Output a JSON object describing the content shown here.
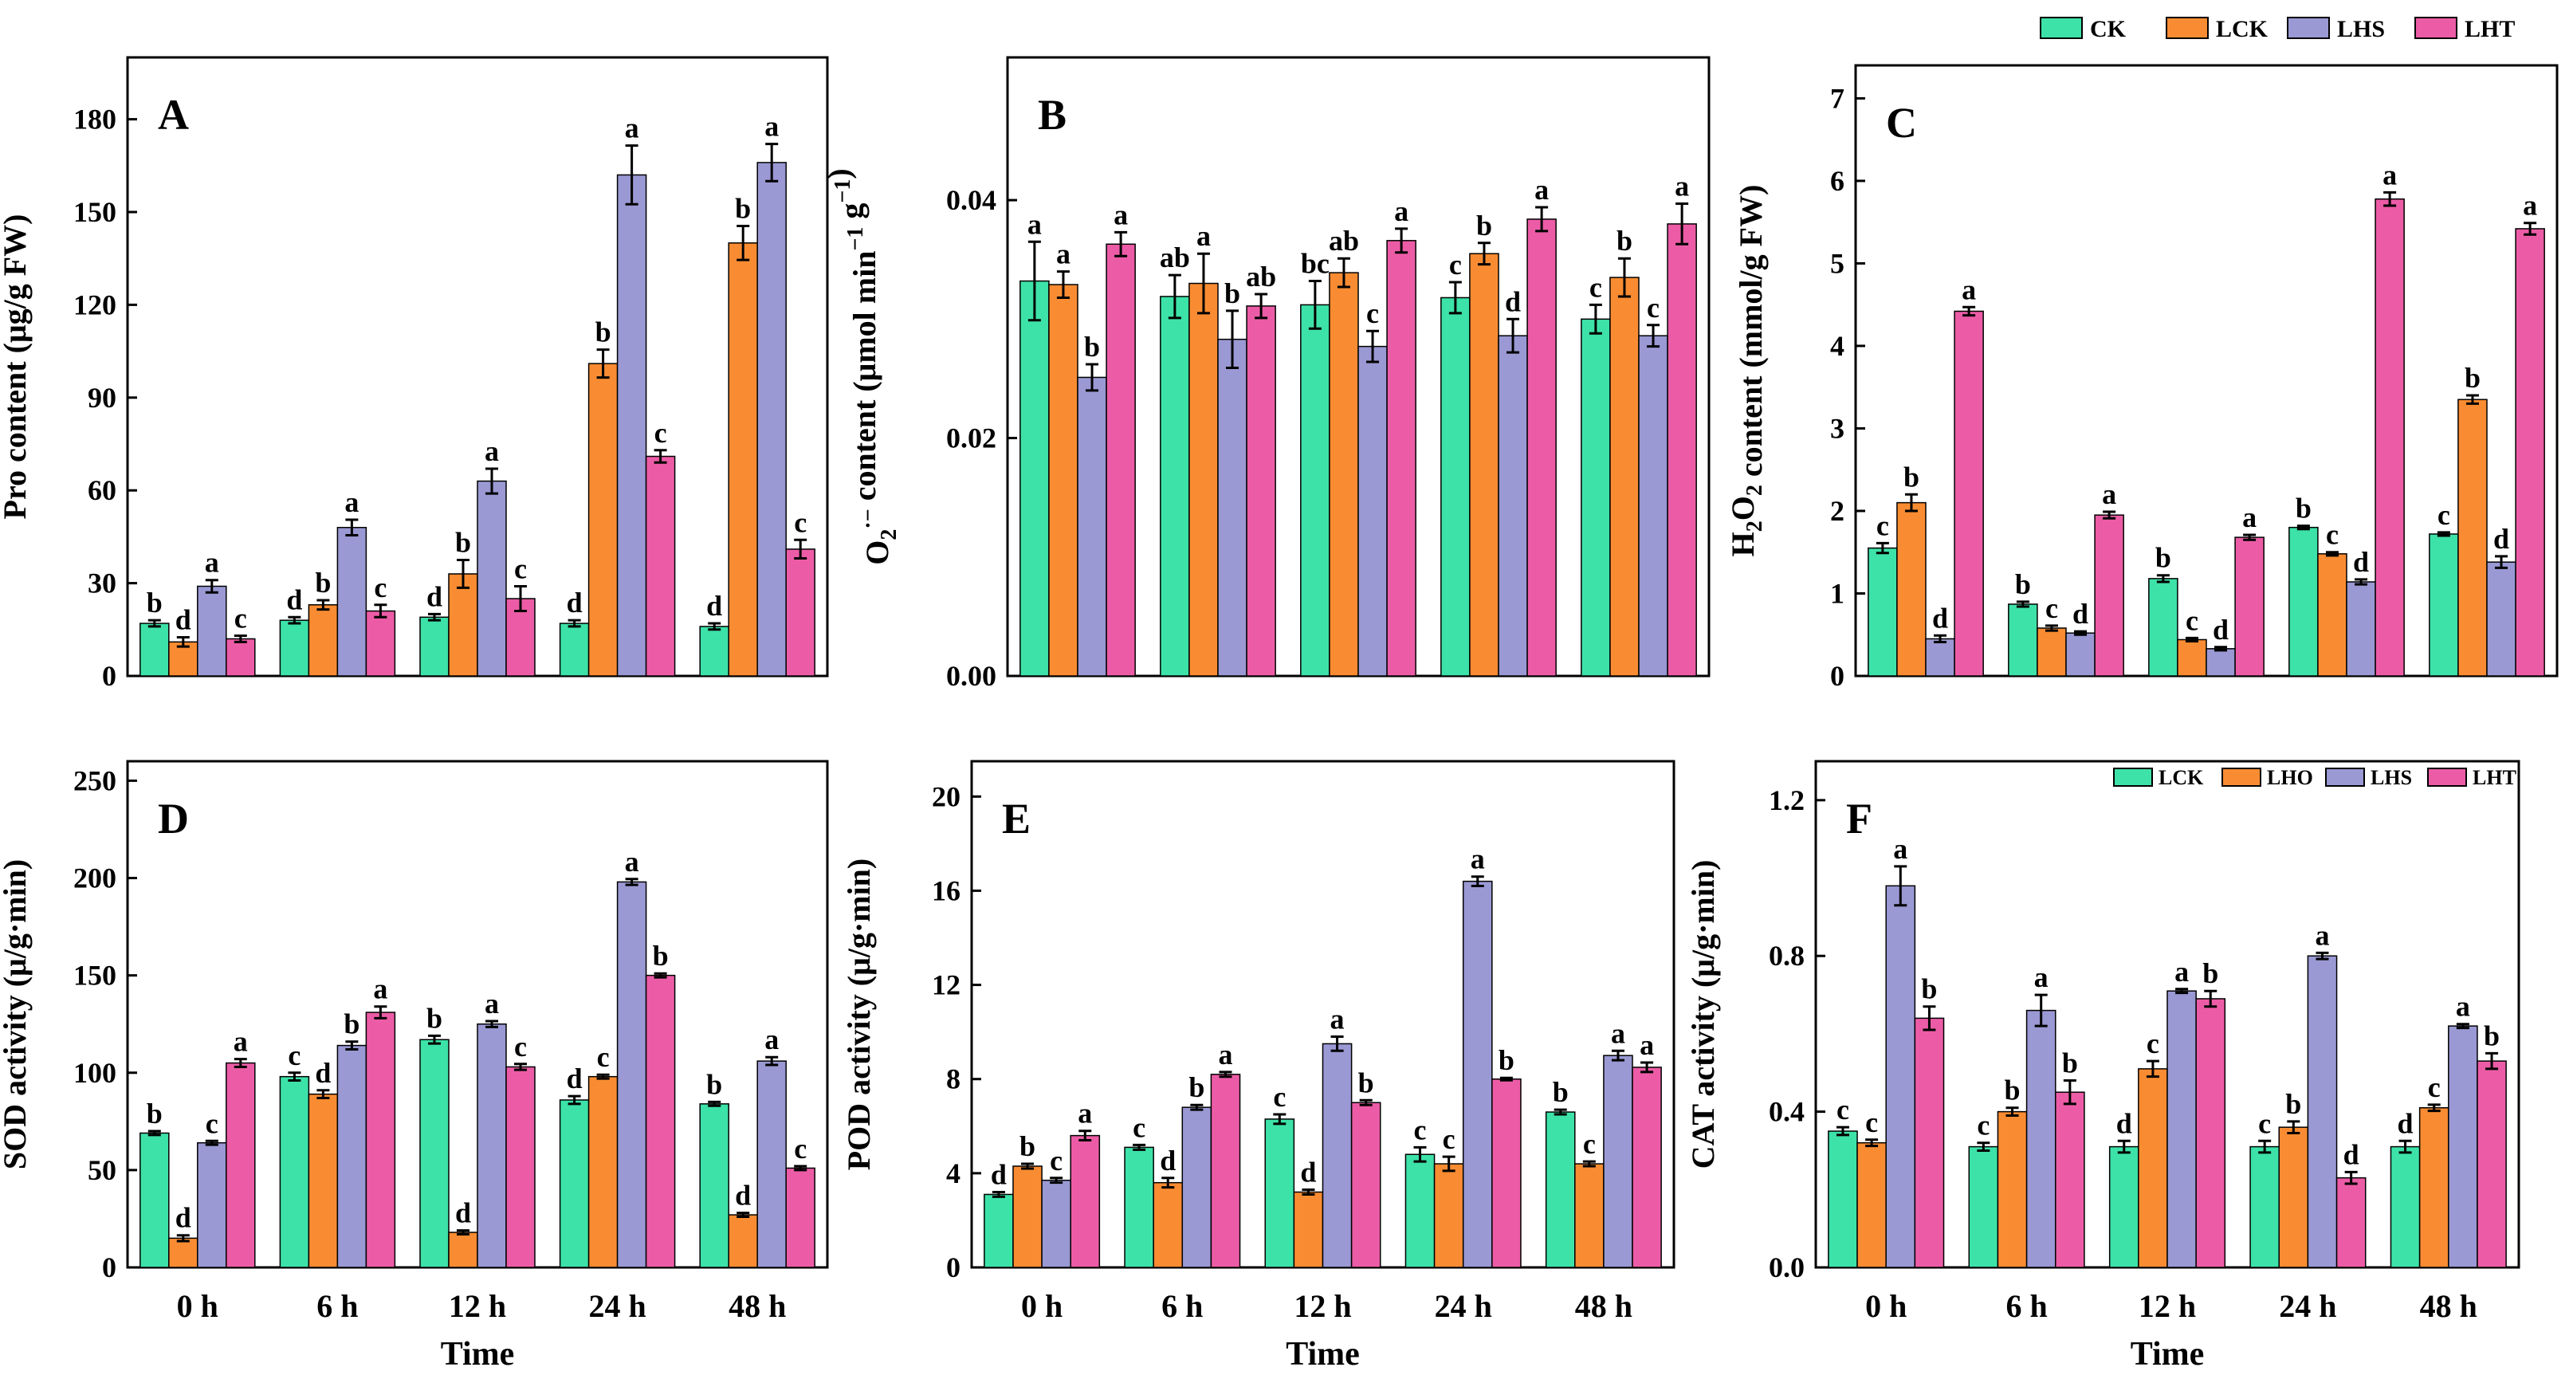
{
  "colors": {
    "CK": "#3de2a8",
    "LCK": "#f98c32",
    "LHS": "#9a99d4",
    "LHT": "#ec5ca6"
  },
  "legend_top": [
    "CK",
    "LCK",
    "LHS",
    "LHT"
  ],
  "legend_f": [
    "LCK",
    "LHO",
    "LHS",
    "LHT"
  ],
  "chart_data": [
    {
      "type": "bar",
      "panel": "A",
      "categories": [
        "",
        "",
        "",
        "",
        ""
      ],
      "ylabel": "Pro content (μg/g FW)",
      "xlabel": "",
      "ylim": [
        0,
        200
      ],
      "yticks": [
        0,
        30,
        60,
        90,
        120,
        150,
        180
      ],
      "tick_decimals": 0,
      "series": [
        {
          "name": "CK",
          "values": [
            17,
            18,
            19,
            17,
            16
          ],
          "err": [
            1,
            1,
            1,
            1,
            1
          ],
          "letters": [
            "b",
            "d",
            "d",
            "d",
            "d"
          ]
        },
        {
          "name": "LCK",
          "values": [
            11,
            23,
            33,
            101,
            140
          ],
          "err": [
            1.5,
            1.5,
            4.5,
            4.5,
            5.5
          ],
          "letters": [
            "d",
            "b",
            "b",
            "b",
            "b"
          ]
        },
        {
          "name": "LHS",
          "values": [
            29,
            48,
            63,
            162,
            166
          ],
          "err": [
            2,
            2.5,
            4,
            9.5,
            6
          ],
          "letters": [
            "a",
            "a",
            "a",
            "a",
            "a"
          ]
        },
        {
          "name": "LHT",
          "values": [
            12,
            21,
            25,
            71,
            41
          ],
          "err": [
            1,
            2,
            4,
            2,
            3
          ],
          "letters": [
            "c",
            "c",
            "c",
            "c",
            "c"
          ]
        }
      ]
    },
    {
      "type": "bar",
      "panel": "B",
      "categories": [
        "",
        "",
        "",
        "",
        ""
      ],
      "ylabel": "O2·− content (μmol min−1 g−1)",
      "xlabel": "",
      "ylim": [
        0,
        0.052
      ],
      "yticks": [
        0.0,
        0.02,
        0.04
      ],
      "tick_decimals": 2,
      "series": [
        {
          "name": "CK",
          "values": [
            0.0332,
            0.0319,
            0.0312,
            0.0318,
            0.03
          ],
          "err": [
            0.0033,
            0.0018,
            0.002,
            0.0013,
            0.0012
          ],
          "letters": [
            "a",
            "ab",
            "bc",
            "c",
            "c"
          ]
        },
        {
          "name": "LCK",
          "values": [
            0.0329,
            0.033,
            0.0339,
            0.0355,
            0.0335
          ],
          "err": [
            0.0011,
            0.0025,
            0.0012,
            0.0009,
            0.0016
          ],
          "letters": [
            "a",
            "a",
            "ab",
            "b",
            "b"
          ]
        },
        {
          "name": "LHS",
          "values": [
            0.0251,
            0.0283,
            0.0277,
            0.0286,
            0.0286
          ],
          "err": [
            0.0011,
            0.0024,
            0.0013,
            0.0014,
            0.0009
          ],
          "letters": [
            "b",
            "b",
            "c",
            "d",
            "c"
          ]
        },
        {
          "name": "LHT",
          "values": [
            0.0363,
            0.0311,
            0.0366,
            0.0384,
            0.038
          ],
          "err": [
            0.001,
            0.001,
            0.001,
            0.001,
            0.0017
          ],
          "letters": [
            "a",
            "ab",
            "a",
            "a",
            "a"
          ]
        }
      ]
    },
    {
      "type": "bar",
      "panel": "C",
      "categories": [
        "",
        "",
        "",
        "",
        ""
      ],
      "ylabel": "H2O2 content (mmol/g FW)",
      "xlabel": "",
      "ylim": [
        0,
        7.4
      ],
      "yticks": [
        0,
        1,
        2,
        3,
        4,
        5,
        6,
        7
      ],
      "tick_decimals": 0,
      "series": [
        {
          "name": "CK",
          "values": [
            1.55,
            0.87,
            1.18,
            1.8,
            1.72
          ],
          "err": [
            0.06,
            0.03,
            0.04,
            0.02,
            0.02
          ],
          "letters": [
            "c",
            "b",
            "b",
            "b",
            "c"
          ]
        },
        {
          "name": "LCK",
          "values": [
            2.1,
            0.58,
            0.44,
            1.48,
            3.35
          ],
          "err": [
            0.1,
            0.03,
            0.02,
            0.02,
            0.05
          ],
          "letters": [
            "b",
            "c",
            "c",
            "c",
            "b"
          ]
        },
        {
          "name": "LHS",
          "values": [
            0.45,
            0.52,
            0.33,
            1.14,
            1.38
          ],
          "err": [
            0.04,
            0.02,
            0.02,
            0.03,
            0.07
          ],
          "letters": [
            "d",
            "d",
            "d",
            "d",
            "d"
          ]
        },
        {
          "name": "LHT",
          "values": [
            4.42,
            1.95,
            1.68,
            5.78,
            5.42
          ],
          "err": [
            0.05,
            0.04,
            0.03,
            0.08,
            0.07
          ],
          "letters": [
            "a",
            "a",
            "a",
            "a",
            "a"
          ]
        }
      ]
    },
    {
      "type": "bar",
      "panel": "D",
      "categories": [
        "0 h",
        "6 h",
        "12 h",
        "24 h",
        "48 h"
      ],
      "ylabel": "SOD activity (μ/g·min)",
      "xlabel": "Time",
      "ylim": [
        0,
        260
      ],
      "yticks": [
        0,
        50,
        100,
        150,
        200,
        250
      ],
      "tick_decimals": 0,
      "series": [
        {
          "name": "CK",
          "values": [
            69,
            98,
            117,
            86,
            84
          ],
          "err": [
            1,
            2,
            2,
            2,
            1
          ],
          "letters": [
            "b",
            "c",
            "b",
            "d",
            "b"
          ]
        },
        {
          "name": "LCK",
          "values": [
            15,
            89,
            18,
            98,
            27
          ],
          "err": [
            1.5,
            2,
            1,
            1,
            1
          ],
          "letters": [
            "d",
            "d",
            "d",
            "c",
            "d"
          ]
        },
        {
          "name": "LHS",
          "values": [
            64,
            114,
            125,
            198,
            106
          ],
          "err": [
            1,
            2,
            1.5,
            1.5,
            2
          ],
          "letters": [
            "c",
            "b",
            "a",
            "a",
            "a"
          ]
        },
        {
          "name": "LHT",
          "values": [
            105,
            131,
            103,
            150,
            51
          ],
          "err": [
            2,
            3,
            1.5,
            1,
            1
          ],
          "letters": [
            "a",
            "a",
            "c",
            "b",
            "c"
          ]
        }
      ]
    },
    {
      "type": "bar",
      "panel": "E",
      "categories": [
        "0 h",
        "6 h",
        "12 h",
        "24 h",
        "48 h"
      ],
      "ylabel": "POD activity (μ/g·min)",
      "xlabel": "Time",
      "ylim": [
        0,
        21.5
      ],
      "yticks": [
        0,
        4,
        8,
        12,
        16,
        20
      ],
      "tick_decimals": 0,
      "series": [
        {
          "name": "CK",
          "values": [
            3.1,
            5.1,
            6.3,
            4.8,
            6.6
          ],
          "err": [
            0.1,
            0.1,
            0.2,
            0.3,
            0.1
          ],
          "letters": [
            "d",
            "c",
            "c",
            "c",
            "b"
          ]
        },
        {
          "name": "LCK",
          "values": [
            4.3,
            3.6,
            3.2,
            4.4,
            4.4
          ],
          "err": [
            0.1,
            0.2,
            0.1,
            0.3,
            0.1
          ],
          "letters": [
            "b",
            "d",
            "d",
            "c",
            "c"
          ]
        },
        {
          "name": "LHS",
          "values": [
            3.7,
            6.8,
            9.5,
            16.4,
            9.0
          ],
          "err": [
            0.1,
            0.1,
            0.3,
            0.2,
            0.2
          ],
          "letters": [
            "c",
            "b",
            "a",
            "a",
            "a"
          ]
        },
        {
          "name": "LHT",
          "values": [
            5.6,
            8.2,
            7.0,
            8.0,
            8.5
          ],
          "err": [
            0.2,
            0.1,
            0.1,
            0.05,
            0.2
          ],
          "letters": [
            "a",
            "a",
            "b",
            "b",
            "a"
          ]
        }
      ]
    },
    {
      "type": "bar",
      "panel": "F",
      "categories": [
        "0 h",
        "6 h",
        "12 h",
        "24 h",
        "48 h"
      ],
      "ylabel": "CAT activity (μ/g·min)",
      "xlabel": "Time",
      "ylim": [
        0,
        1.3
      ],
      "yticks": [
        0.0,
        0.4,
        0.8,
        1.2
      ],
      "tick_decimals": 1,
      "series": [
        {
          "name": "LCK",
          "values": [
            0.35,
            0.31,
            0.31,
            0.31,
            0.31
          ],
          "err": [
            0.01,
            0.01,
            0.015,
            0.015,
            0.015
          ],
          "letters": [
            "c",
            "c",
            "d",
            "c",
            "d"
          ]
        },
        {
          "name": "LHO",
          "values": [
            0.32,
            0.4,
            0.51,
            0.36,
            0.41
          ],
          "err": [
            0.008,
            0.01,
            0.02,
            0.015,
            0.008
          ],
          "letters": [
            "c",
            "b",
            "c",
            "b",
            "c"
          ]
        },
        {
          "name": "LHS",
          "values": [
            0.98,
            0.66,
            0.71,
            0.8,
            0.62
          ],
          "err": [
            0.05,
            0.04,
            0.005,
            0.008,
            0.005
          ],
          "letters": [
            "a",
            "a",
            "a",
            "a",
            "a"
          ]
        },
        {
          "name": "LHT",
          "values": [
            0.64,
            0.45,
            0.69,
            0.23,
            0.53
          ],
          "err": [
            0.03,
            0.03,
            0.02,
            0.015,
            0.02
          ],
          "letters": [
            "b",
            "b",
            "b",
            "d",
            "b"
          ]
        }
      ]
    }
  ]
}
